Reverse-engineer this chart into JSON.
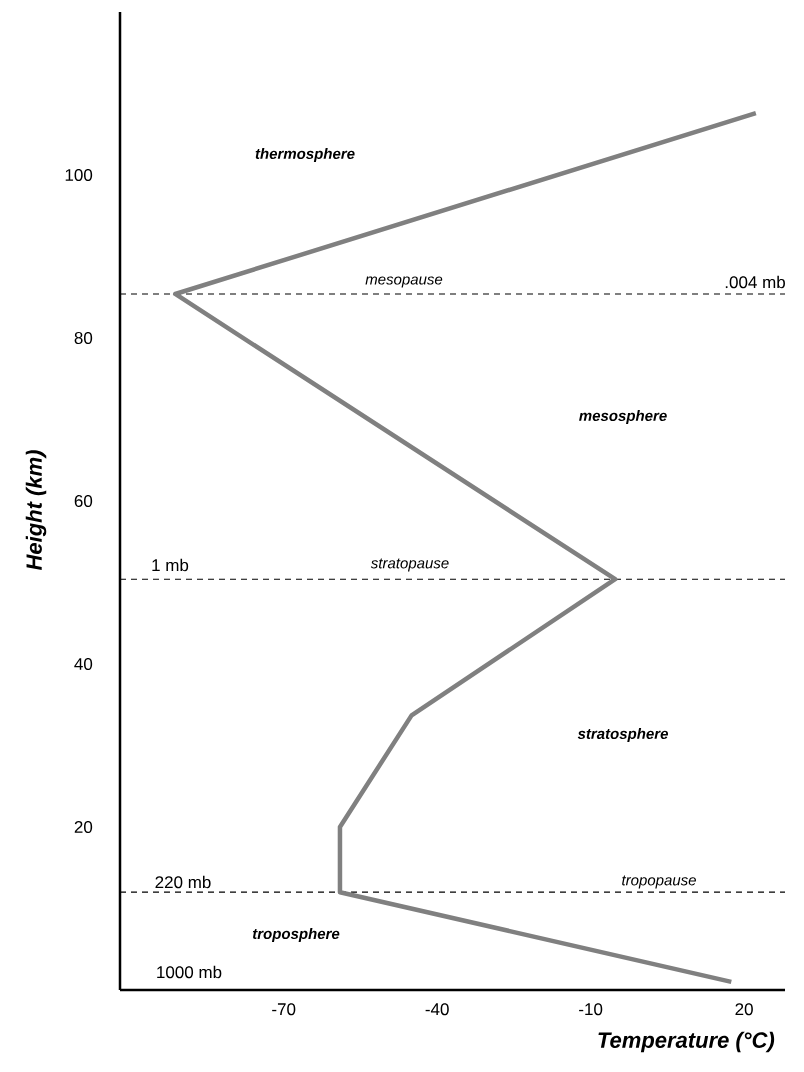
{
  "chart_data": {
    "type": "line",
    "xlabel": "Temperature (°C)",
    "ylabel": "Height (km)",
    "xlim": [
      -102,
      28
    ],
    "ylim": [
      0,
      120
    ],
    "xticks": [
      -70,
      -40,
      -10,
      20
    ],
    "yticks": [
      20,
      40,
      60,
      80,
      100
    ],
    "grid": false,
    "marker": "none",
    "line_style": "solid",
    "series": [
      {
        "color": "#808080",
        "x": [
          17.5,
          -59,
          -59,
          -45,
          -5.2,
          -91.2,
          22.3
        ],
        "values": [
          1,
          12,
          20,
          33.7,
          50.4,
          85.4,
          107.6
        ]
      }
    ],
    "ref_lines": [
      {
        "axis": "y",
        "value": 85.4,
        "color": "#000000",
        "line_style": "dashed"
      },
      {
        "axis": "y",
        "value": 50.4,
        "color": "#000000",
        "line_style": "dashed"
      },
      {
        "axis": "y",
        "value": 12,
        "color": "#000000",
        "line_style": "dashed"
      }
    ],
    "annotations": [
      "thermosphere",
      "mesosphere",
      "stratosphere",
      "troposphere",
      "mesopause",
      "stratopause",
      "tropopause",
      ".004 mb",
      "1 mb",
      "220 mb",
      "1000 mb"
    ]
  }
}
